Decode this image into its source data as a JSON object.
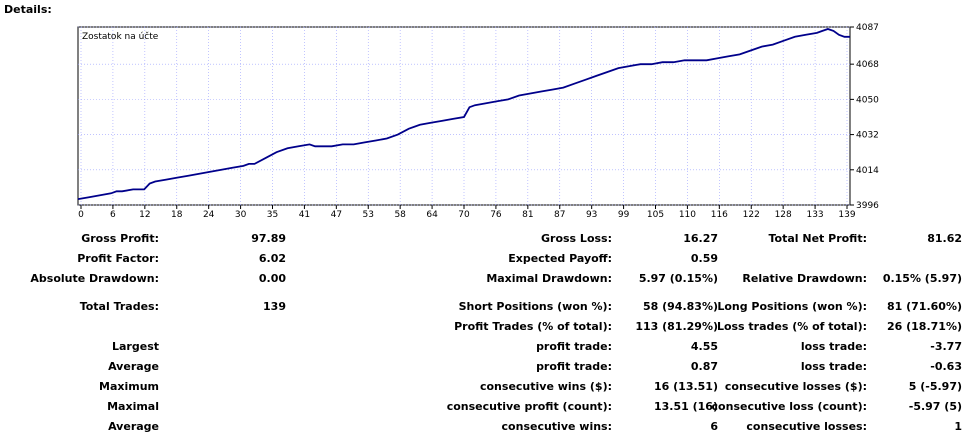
{
  "section_title": "Details:",
  "chart_data": {
    "type": "line",
    "title": "Zostatok na účte",
    "xlabel": "",
    "ylabel": "",
    "x_ticks": [
      "0",
      "6",
      "12",
      "18",
      "24",
      "30",
      "35",
      "41",
      "47",
      "53",
      "58",
      "64",
      "70",
      "76",
      "81",
      "87",
      "93",
      "99",
      "105",
      "110",
      "116",
      "122",
      "128",
      "133",
      "139"
    ],
    "y_ticks": [
      "4087",
      "4068",
      "4050",
      "4032",
      "4014",
      "3996"
    ],
    "ylim": [
      3996,
      4087
    ],
    "xlim": [
      0,
      140
    ],
    "grid": true,
    "colors": {
      "line": "#00008b",
      "grid": "#9aa0ff"
    },
    "x": [
      0,
      2,
      4,
      6,
      7,
      8,
      10,
      11,
      12,
      13,
      14,
      16,
      18,
      20,
      22,
      24,
      26,
      28,
      30,
      31,
      32,
      34,
      36,
      38,
      40,
      42,
      43,
      44,
      46,
      48,
      50,
      52,
      54,
      56,
      58,
      60,
      62,
      64,
      66,
      68,
      70,
      71,
      72,
      74,
      76,
      78,
      80,
      82,
      84,
      86,
      88,
      90,
      92,
      94,
      96,
      98,
      100,
      102,
      104,
      106,
      108,
      110,
      112,
      114,
      116,
      118,
      120,
      122,
      124,
      126,
      128,
      130,
      132,
      134,
      135,
      136,
      137,
      138,
      139,
      140
    ],
    "y": [
      3999,
      4000,
      4001,
      4002,
      4003,
      4003,
      4004,
      4004,
      4004,
      4007,
      4008,
      4009,
      4010,
      4011,
      4012,
      4013,
      4014,
      4015,
      4016,
      4017,
      4017,
      4020,
      4023,
      4025,
      4026,
      4027,
      4026,
      4026,
      4026,
      4027,
      4027,
      4028,
      4029,
      4030,
      4032,
      4035,
      4037,
      4038,
      4039,
      4040,
      4041,
      4046,
      4047,
      4048,
      4049,
      4050,
      4052,
      4053,
      4054,
      4055,
      4056,
      4058,
      4060,
      4062,
      4064,
      4066,
      4067,
      4068,
      4068,
      4069,
      4069,
      4070,
      4070,
      4070,
      4071,
      4072,
      4073,
      4075,
      4077,
      4078,
      4080,
      4082,
      4083,
      4084,
      4085,
      4086,
      4085,
      4083,
      4082,
      4082
    ]
  },
  "stats": {
    "gross_profit_label": "Gross Profit:",
    "gross_profit": "97.89",
    "profit_factor_label": "Profit Factor:",
    "profit_factor": "6.02",
    "absolute_drawdown_label": "Absolute Drawdown:",
    "absolute_drawdown": "0.00",
    "total_trades_label": "Total Trades:",
    "total_trades": "139",
    "largest_label": "Largest",
    "average_label": "Average",
    "maximum_label": "Maximum",
    "maximal_label": "Maximal",
    "average2_label": "Average",
    "gross_loss_label": "Gross Loss:",
    "gross_loss": "16.27",
    "expected_payoff_label": "Expected Payoff:",
    "expected_payoff": "0.59",
    "maximal_drawdown_label": "Maximal Drawdown:",
    "maximal_drawdown": "5.97 (0.15%)",
    "short_positions_label": "Short Positions (won %):",
    "short_positions": "58 (94.83%)",
    "profit_trades_label": "Profit Trades (% of total):",
    "profit_trades": "113 (81.29%)",
    "largest_profit_trade_label": "profit trade:",
    "largest_profit_trade": "4.55",
    "average_profit_trade_label": "profit trade:",
    "average_profit_trade": "0.87",
    "max_consecutive_wins_label": "consecutive wins ($):",
    "max_consecutive_wins": "16 (13.51)",
    "maximal_consecutive_profit_label": "consecutive profit (count):",
    "maximal_consecutive_profit": "13.51 (16)",
    "average_consecutive_wins_label": "consecutive wins:",
    "average_consecutive_wins": "6",
    "total_net_profit_label": "Total Net Profit:",
    "total_net_profit": "81.62",
    "relative_drawdown_label": "Relative Drawdown:",
    "relative_drawdown": "0.15% (5.97)",
    "long_positions_label": "Long Positions (won %):",
    "long_positions": "81 (71.60%)",
    "loss_trades_label": "Loss trades (% of total):",
    "loss_trades": "26 (18.71%)",
    "largest_loss_trade_label": "loss trade:",
    "largest_loss_trade": "-3.77",
    "average_loss_trade_label": "loss trade:",
    "average_loss_trade": "-0.63",
    "max_consecutive_losses_label": "consecutive losses ($):",
    "max_consecutive_losses": "5 (-5.97)",
    "maximal_consecutive_loss_label": "consecutive loss (count):",
    "maximal_consecutive_loss": "-5.97 (5)",
    "average_consecutive_losses_label": "consecutive losses:",
    "average_consecutive_losses": "1"
  }
}
